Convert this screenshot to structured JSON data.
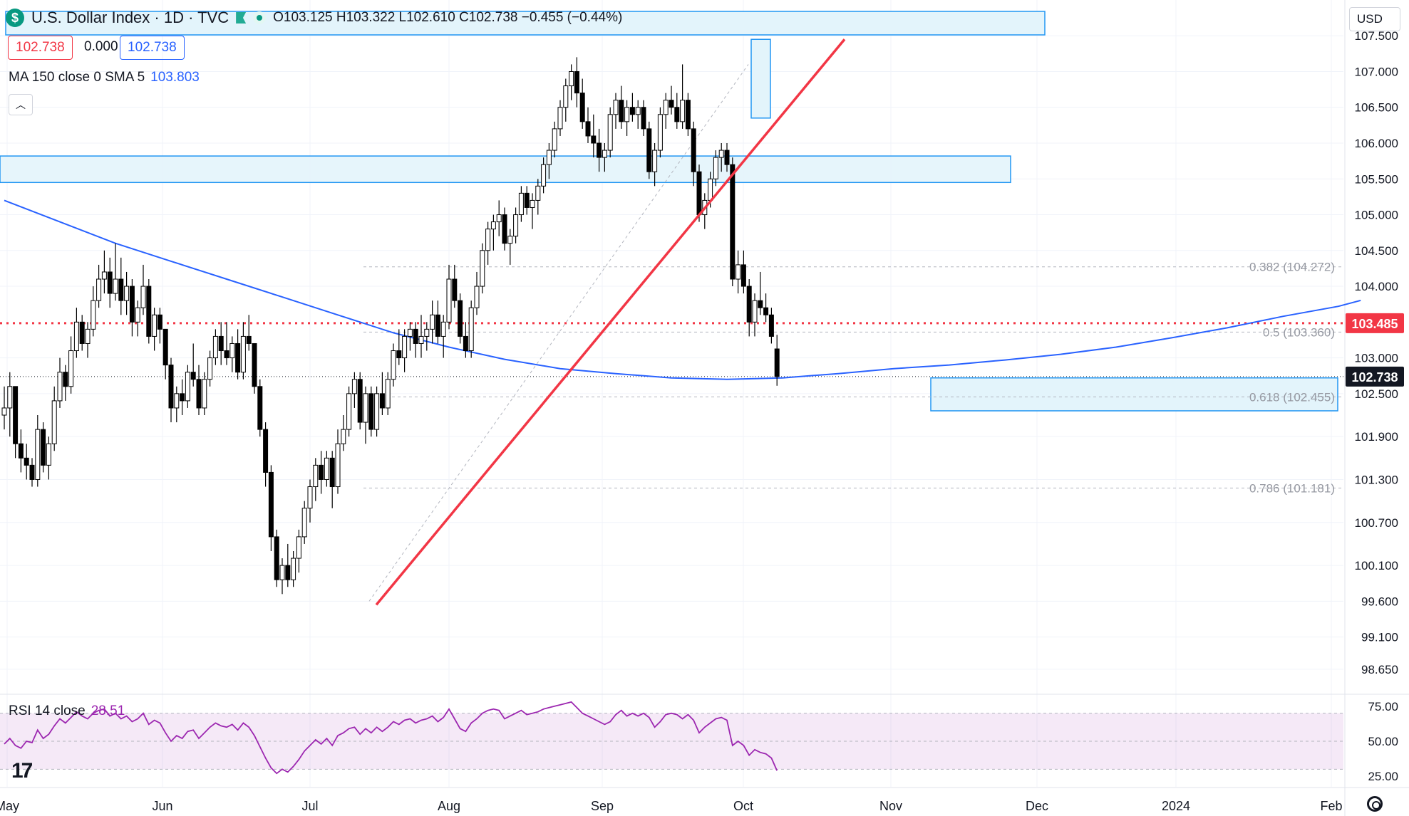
{
  "header": {
    "symbol_title": "U.S. Dollar Index · 1D · TVC",
    "ohlc": "O103.125  H103.322  L102.610  C102.738  −0.455 (−0.44%)",
    "price_sell": "102.738",
    "spread": "0.000",
    "price_buy": "102.738",
    "currency": "USD"
  },
  "indicators": {
    "ma_label": "MA 150 close 0 SMA 5",
    "ma_value": "103.803",
    "rsi_label": "RSI 14 close",
    "rsi_value": "28.51"
  },
  "colors": {
    "up": "#000000",
    "down": "#000000",
    "ma": "#2962ff",
    "rsi": "#9c27b0",
    "trendline": "#f23645",
    "zone": "#2196f3",
    "resistance": "#f23645"
  },
  "chart_data": {
    "type": "candlestick",
    "x_ticks": [
      "May",
      "Jun",
      "Jul",
      "Aug",
      "Sep",
      "Oct",
      "Nov",
      "Dec",
      "2024",
      "Feb"
    ],
    "y_ticks": [
      "107.500",
      "107.000",
      "106.500",
      "106.000",
      "105.500",
      "105.000",
      "104.500",
      "104.000",
      "103.000",
      "102.500",
      "101.900",
      "101.300",
      "100.700",
      "100.100",
      "99.600",
      "99.100",
      "98.650"
    ],
    "ylim": [
      98.4,
      107.9
    ],
    "last_price": "102.738",
    "resistance_level": "103.485",
    "fibonacci": [
      {
        "label": "0.382 (104.272)",
        "value": 104.272
      },
      {
        "label": "0.5 (103.360)",
        "value": 103.36
      },
      {
        "label": "0.618 (102.455)",
        "value": 102.455
      },
      {
        "label": "0.786 (101.181)",
        "value": 101.181
      }
    ],
    "rsi_ticks": [
      "75.00",
      "50.00",
      "25.00"
    ],
    "rsi_ylim": [
      20,
      80
    ],
    "candles": [
      [
        102.2,
        102.6,
        102.0,
        102.3
      ],
      [
        102.3,
        102.8,
        101.9,
        102.6
      ],
      [
        102.6,
        102.6,
        101.6,
        101.8
      ],
      [
        101.8,
        102.0,
        101.4,
        101.6
      ],
      [
        101.6,
        101.8,
        101.3,
        101.5
      ],
      [
        101.5,
        101.6,
        101.2,
        101.3
      ],
      [
        101.3,
        102.2,
        101.2,
        102.0
      ],
      [
        102.0,
        102.1,
        101.4,
        101.5
      ],
      [
        101.5,
        101.9,
        101.3,
        101.8
      ],
      [
        101.8,
        102.6,
        101.7,
        102.4
      ],
      [
        102.4,
        103.0,
        102.3,
        102.8
      ],
      [
        102.8,
        102.9,
        102.4,
        102.6
      ],
      [
        102.6,
        103.3,
        102.5,
        103.1
      ],
      [
        103.1,
        103.7,
        103.0,
        103.5
      ],
      [
        103.5,
        103.6,
        103.1,
        103.2
      ],
      [
        103.2,
        103.5,
        103.0,
        103.4
      ],
      [
        103.4,
        104.0,
        103.3,
        103.8
      ],
      [
        103.8,
        104.3,
        103.7,
        104.1
      ],
      [
        104.1,
        104.5,
        103.9,
        104.2
      ],
      [
        104.2,
        104.4,
        103.7,
        103.9
      ],
      [
        103.9,
        104.6,
        103.8,
        104.1
      ],
      [
        104.1,
        104.4,
        103.6,
        103.8
      ],
      [
        103.8,
        104.2,
        103.6,
        104.0
      ],
      [
        104.0,
        104.1,
        103.3,
        103.5
      ],
      [
        103.5,
        103.8,
        103.3,
        103.7
      ],
      [
        103.7,
        104.3,
        103.6,
        104.0
      ],
      [
        104.0,
        104.1,
        103.2,
        103.3
      ],
      [
        103.3,
        103.7,
        103.1,
        103.6
      ],
      [
        103.6,
        103.7,
        103.2,
        103.4
      ],
      [
        103.4,
        103.4,
        102.7,
        102.9
      ],
      [
        102.9,
        103.0,
        102.1,
        102.3
      ],
      [
        102.3,
        102.6,
        102.1,
        102.5
      ],
      [
        102.5,
        102.7,
        102.2,
        102.4
      ],
      [
        102.4,
        102.9,
        102.3,
        102.8
      ],
      [
        102.8,
        103.2,
        102.6,
        102.7
      ],
      [
        102.7,
        102.9,
        102.2,
        102.3
      ],
      [
        102.3,
        102.8,
        102.2,
        102.7
      ],
      [
        102.7,
        103.1,
        102.6,
        103.0
      ],
      [
        103.0,
        103.4,
        102.9,
        103.3
      ],
      [
        103.3,
        103.5,
        102.9,
        103.1
      ],
      [
        103.1,
        103.5,
        102.9,
        103.0
      ],
      [
        103.0,
        103.3,
        102.8,
        103.2
      ],
      [
        103.2,
        103.4,
        102.7,
        102.8
      ],
      [
        102.8,
        103.5,
        102.7,
        103.3
      ],
      [
        103.3,
        103.6,
        103.1,
        103.2
      ],
      [
        103.2,
        103.2,
        102.5,
        102.6
      ],
      [
        102.6,
        102.7,
        101.9,
        102.0
      ],
      [
        102.0,
        102.1,
        101.2,
        101.4
      ],
      [
        101.4,
        101.5,
        100.3,
        100.5
      ],
      [
        100.5,
        100.6,
        99.8,
        99.9
      ],
      [
        99.9,
        100.2,
        99.7,
        100.1
      ],
      [
        100.1,
        100.4,
        99.8,
        99.9
      ],
      [
        99.9,
        100.3,
        99.8,
        100.2
      ],
      [
        100.2,
        100.6,
        100.0,
        100.5
      ],
      [
        100.5,
        101.0,
        100.4,
        100.9
      ],
      [
        100.9,
        101.3,
        100.7,
        101.2
      ],
      [
        101.2,
        101.6,
        101.0,
        101.5
      ],
      [
        101.5,
        101.7,
        101.1,
        101.3
      ],
      [
        101.3,
        101.7,
        101.2,
        101.6
      ],
      [
        101.6,
        101.7,
        100.9,
        101.2
      ],
      [
        101.2,
        102.0,
        101.1,
        101.8
      ],
      [
        101.8,
        102.2,
        101.7,
        102.0
      ],
      [
        102.0,
        102.6,
        101.9,
        102.5
      ],
      [
        102.5,
        102.8,
        102.3,
        102.7
      ],
      [
        102.7,
        102.8,
        102.0,
        102.1
      ],
      [
        102.1,
        102.6,
        101.8,
        102.5
      ],
      [
        102.5,
        102.6,
        101.9,
        102.0
      ],
      [
        102.0,
        102.6,
        101.9,
        102.5
      ],
      [
        102.5,
        102.8,
        102.2,
        102.3
      ],
      [
        102.3,
        102.8,
        102.2,
        102.7
      ],
      [
        102.7,
        103.2,
        102.6,
        103.1
      ],
      [
        103.1,
        103.4,
        102.9,
        103.0
      ],
      [
        103.0,
        103.4,
        102.8,
        103.3
      ],
      [
        103.3,
        103.5,
        103.1,
        103.4
      ],
      [
        103.4,
        103.5,
        103.0,
        103.2
      ],
      [
        103.2,
        103.6,
        103.0,
        103.3
      ],
      [
        103.3,
        103.5,
        103.1,
        103.4
      ],
      [
        103.4,
        103.8,
        103.2,
        103.6
      ],
      [
        103.6,
        103.8,
        103.2,
        103.3
      ],
      [
        103.3,
        103.6,
        103.0,
        103.5
      ],
      [
        103.5,
        104.3,
        103.4,
        104.1
      ],
      [
        104.1,
        104.3,
        103.7,
        103.8
      ],
      [
        103.8,
        103.9,
        103.2,
        103.3
      ],
      [
        103.3,
        103.5,
        103.0,
        103.1
      ],
      [
        103.1,
        103.8,
        103.0,
        103.7
      ],
      [
        103.7,
        104.2,
        103.6,
        104.0
      ],
      [
        104.0,
        104.6,
        103.9,
        104.5
      ],
      [
        104.5,
        104.9,
        104.3,
        104.8
      ],
      [
        104.8,
        105.0,
        104.5,
        104.9
      ],
      [
        104.9,
        105.2,
        104.7,
        105.0
      ],
      [
        105.0,
        105.1,
        104.5,
        104.6
      ],
      [
        104.6,
        104.8,
        104.3,
        104.7
      ],
      [
        104.7,
        105.1,
        104.6,
        105.0
      ],
      [
        105.0,
        105.4,
        104.9,
        105.3
      ],
      [
        105.3,
        105.4,
        105.0,
        105.1
      ],
      [
        105.1,
        105.3,
        104.8,
        105.2
      ],
      [
        105.2,
        105.5,
        105.0,
        105.4
      ],
      [
        105.4,
        105.8,
        105.3,
        105.7
      ],
      [
        105.7,
        106.0,
        105.5,
        105.9
      ],
      [
        105.9,
        106.3,
        105.8,
        106.2
      ],
      [
        106.2,
        106.6,
        106.1,
        106.5
      ],
      [
        106.5,
        106.9,
        106.3,
        106.8
      ],
      [
        106.8,
        107.1,
        106.6,
        107.0
      ],
      [
        107.0,
        107.2,
        106.5,
        106.7
      ],
      [
        106.7,
        106.9,
        106.2,
        106.3
      ],
      [
        106.3,
        106.5,
        106.0,
        106.1
      ],
      [
        106.1,
        106.4,
        105.8,
        106.0
      ],
      [
        106.0,
        106.2,
        105.6,
        105.8
      ],
      [
        105.8,
        106.0,
        105.6,
        105.9
      ],
      [
        105.9,
        106.5,
        105.8,
        106.4
      ],
      [
        106.4,
        106.7,
        106.2,
        106.6
      ],
      [
        106.6,
        106.8,
        106.2,
        106.3
      ],
      [
        106.3,
        106.6,
        106.1,
        106.5
      ],
      [
        106.5,
        106.7,
        106.3,
        106.4
      ],
      [
        106.4,
        106.6,
        106.2,
        106.5
      ],
      [
        106.5,
        106.6,
        106.1,
        106.2
      ],
      [
        106.2,
        106.3,
        105.5,
        105.6
      ],
      [
        105.6,
        106.0,
        105.4,
        105.9
      ],
      [
        105.9,
        106.5,
        105.8,
        106.4
      ],
      [
        106.4,
        106.7,
        106.2,
        106.6
      ],
      [
        106.6,
        106.8,
        106.4,
        106.5
      ],
      [
        106.5,
        106.7,
        106.2,
        106.3
      ],
      [
        106.3,
        107.1,
        106.2,
        106.6
      ],
      [
        106.6,
        106.7,
        106.1,
        106.2
      ],
      [
        106.2,
        106.3,
        105.4,
        105.6
      ],
      [
        105.6,
        105.7,
        104.9,
        105.0
      ],
      [
        105.0,
        105.3,
        104.8,
        105.2
      ],
      [
        105.2,
        105.6,
        105.1,
        105.5
      ],
      [
        105.5,
        105.9,
        105.4,
        105.8
      ],
      [
        105.8,
        106.0,
        105.6,
        105.9
      ],
      [
        105.9,
        106.0,
        105.6,
        105.7
      ],
      [
        105.7,
        105.8,
        104.0,
        104.1
      ],
      [
        104.1,
        104.5,
        103.9,
        104.3
      ],
      [
        104.3,
        104.5,
        103.9,
        104.0
      ],
      [
        104.0,
        104.1,
        103.3,
        103.5
      ],
      [
        103.5,
        103.9,
        103.3,
        103.8
      ],
      [
        103.8,
        104.2,
        103.6,
        103.7
      ],
      [
        103.7,
        103.9,
        103.5,
        103.6
      ],
      [
        103.6,
        103.7,
        103.2,
        103.3
      ],
      [
        103.125,
        103.322,
        102.61,
        102.738
      ]
    ],
    "ma150": [
      [
        0,
        105.2
      ],
      [
        10,
        104.9
      ],
      [
        20,
        104.6
      ],
      [
        30,
        104.35
      ],
      [
        40,
        104.1
      ],
      [
        50,
        103.85
      ],
      [
        60,
        103.6
      ],
      [
        70,
        103.35
      ],
      [
        80,
        103.15
      ],
      [
        90,
        102.98
      ],
      [
        100,
        102.85
      ],
      [
        110,
        102.78
      ],
      [
        120,
        102.72
      ],
      [
        130,
        102.7
      ],
      [
        140,
        102.72
      ],
      [
        150,
        102.78
      ],
      [
        160,
        102.85
      ],
      [
        170,
        102.9
      ],
      [
        180,
        102.97
      ],
      [
        190,
        103.05
      ],
      [
        200,
        103.15
      ],
      [
        210,
        103.28
      ],
      [
        220,
        103.42
      ],
      [
        230,
        103.58
      ],
      [
        240,
        103.72
      ],
      [
        244,
        103.803
      ]
    ],
    "rsi": [
      48,
      52,
      47,
      45,
      50,
      49,
      58,
      52,
      55,
      61,
      66,
      63,
      67,
      71,
      68,
      66,
      70,
      72,
      73,
      68,
      70,
      66,
      68,
      64,
      66,
      70,
      62,
      65,
      63,
      56,
      50,
      54,
      52,
      57,
      58,
      52,
      56,
      60,
      63,
      61,
      60,
      62,
      58,
      63,
      60,
      54,
      46,
      38,
      31,
      27,
      30,
      28,
      32,
      37,
      43,
      47,
      51,
      48,
      52,
      47,
      54,
      56,
      59,
      60,
      55,
      59,
      56,
      60,
      57,
      60,
      64,
      62,
      65,
      66,
      63,
      65,
      66,
      68,
      64,
      67,
      73,
      66,
      59,
      57,
      63,
      66,
      70,
      72,
      73,
      72,
      66,
      68,
      70,
      72,
      69,
      70,
      71,
      73,
      74,
      75,
      76,
      77,
      78,
      74,
      70,
      68,
      66,
      64,
      62,
      64,
      69,
      72,
      68,
      70,
      68,
      70,
      67,
      60,
      64,
      69,
      70,
      69,
      66,
      69,
      65,
      56,
      60,
      63,
      66,
      67,
      65,
      47,
      50,
      47,
      40,
      44,
      42,
      41,
      38,
      29
    ]
  }
}
